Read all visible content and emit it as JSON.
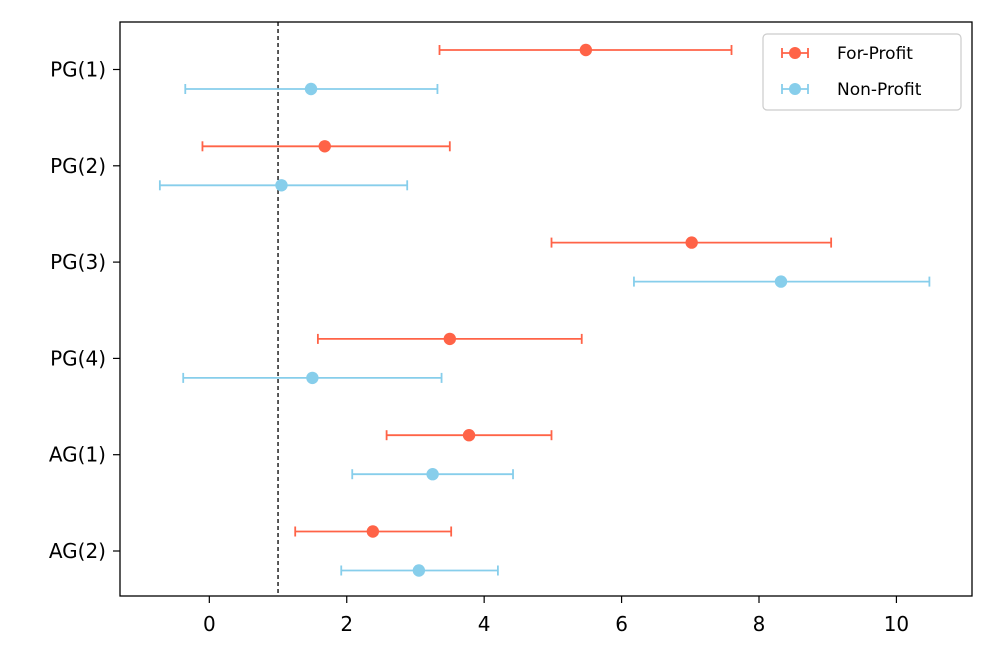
{
  "chart_data": {
    "type": "scatter",
    "title": "",
    "xlabel": "",
    "ylabel": "",
    "xlim": [
      -1.3,
      11.1
    ],
    "xticks": [
      0,
      2,
      4,
      6,
      8,
      10
    ],
    "xtick_labels": [
      "0",
      "2",
      "4",
      "6",
      "8",
      "10"
    ],
    "categories": [
      "PG(1)",
      "PG(2)",
      "PG(3)",
      "PG(4)",
      "AG(1)",
      "AG(2)"
    ],
    "reference_line": {
      "x": 1,
      "style": "dashed"
    },
    "legend_position": "top-right",
    "series": [
      {
        "name": "For-Profit",
        "color": "#ff6347",
        "points": [
          {
            "category": "PG(1)",
            "value": 5.48,
            "low": 3.35,
            "high": 7.6
          },
          {
            "category": "PG(2)",
            "value": 1.68,
            "low": -0.1,
            "high": 3.5
          },
          {
            "category": "PG(3)",
            "value": 7.02,
            "low": 4.98,
            "high": 9.05
          },
          {
            "category": "PG(4)",
            "value": 3.5,
            "low": 1.58,
            "high": 5.42
          },
          {
            "category": "AG(1)",
            "value": 3.78,
            "low": 2.58,
            "high": 4.98
          },
          {
            "category": "AG(2)",
            "value": 2.38,
            "low": 1.25,
            "high": 3.52
          }
        ]
      },
      {
        "name": "Non-Profit",
        "color": "#87ceeb",
        "points": [
          {
            "category": "PG(1)",
            "value": 1.48,
            "low": -0.35,
            "high": 3.32
          },
          {
            "category": "PG(2)",
            "value": 1.05,
            "low": -0.72,
            "high": 2.88
          },
          {
            "category": "PG(3)",
            "value": 8.32,
            "low": 6.18,
            "high": 10.48
          },
          {
            "category": "PG(4)",
            "value": 1.5,
            "low": -0.38,
            "high": 3.38
          },
          {
            "category": "AG(1)",
            "value": 3.25,
            "low": 2.08,
            "high": 4.42
          },
          {
            "category": "AG(2)",
            "value": 3.05,
            "low": 1.92,
            "high": 4.2
          }
        ]
      }
    ]
  }
}
